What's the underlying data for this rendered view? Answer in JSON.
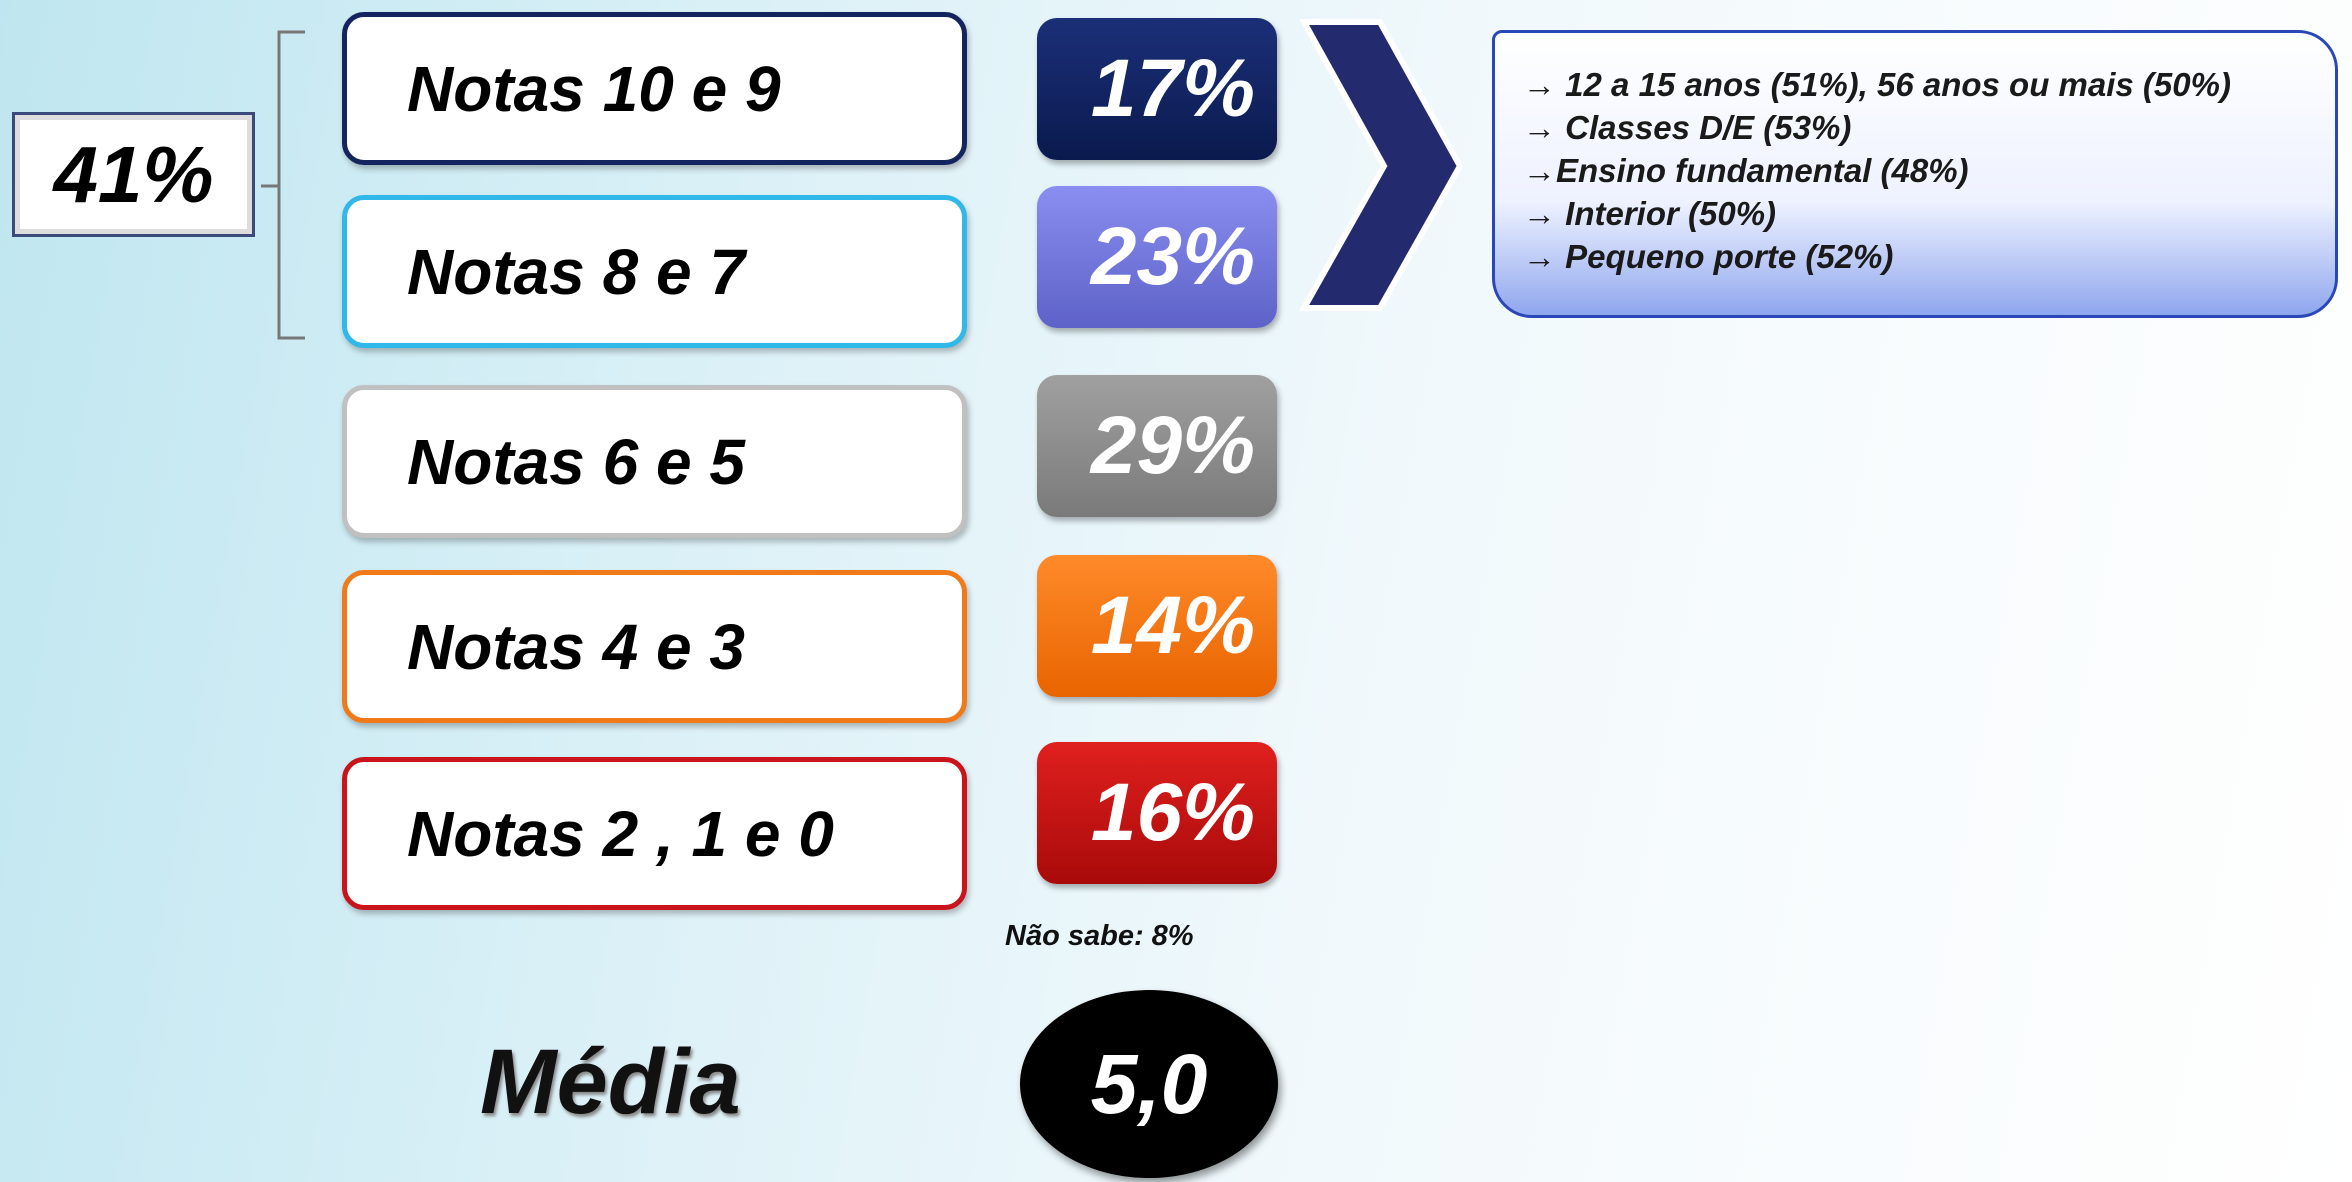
{
  "group_label": "41%",
  "rows": [
    {
      "label": "Notas 10 e 9",
      "value": "17%"
    },
    {
      "label": "Notas 8 e 7",
      "value": "23%"
    },
    {
      "label": "Notas 6 e 5",
      "value": "29%"
    },
    {
      "label": "Notas 4 e 3",
      "value": "14%"
    },
    {
      "label": "Notas 2 , 1 e 0",
      "value": "16%"
    }
  ],
  "note": "Não sabe: 8%",
  "average": {
    "label": "Média",
    "value": "5,0"
  },
  "details": [
    "→ 12 a 15 anos (51%), 56 anos ou mais (50%)",
    "→ Classes D/E (53%)",
    "→Ensino fundamental (48%)",
    "→ Interior (50%)",
    "→ Pequeno porte (52%)"
  ]
}
